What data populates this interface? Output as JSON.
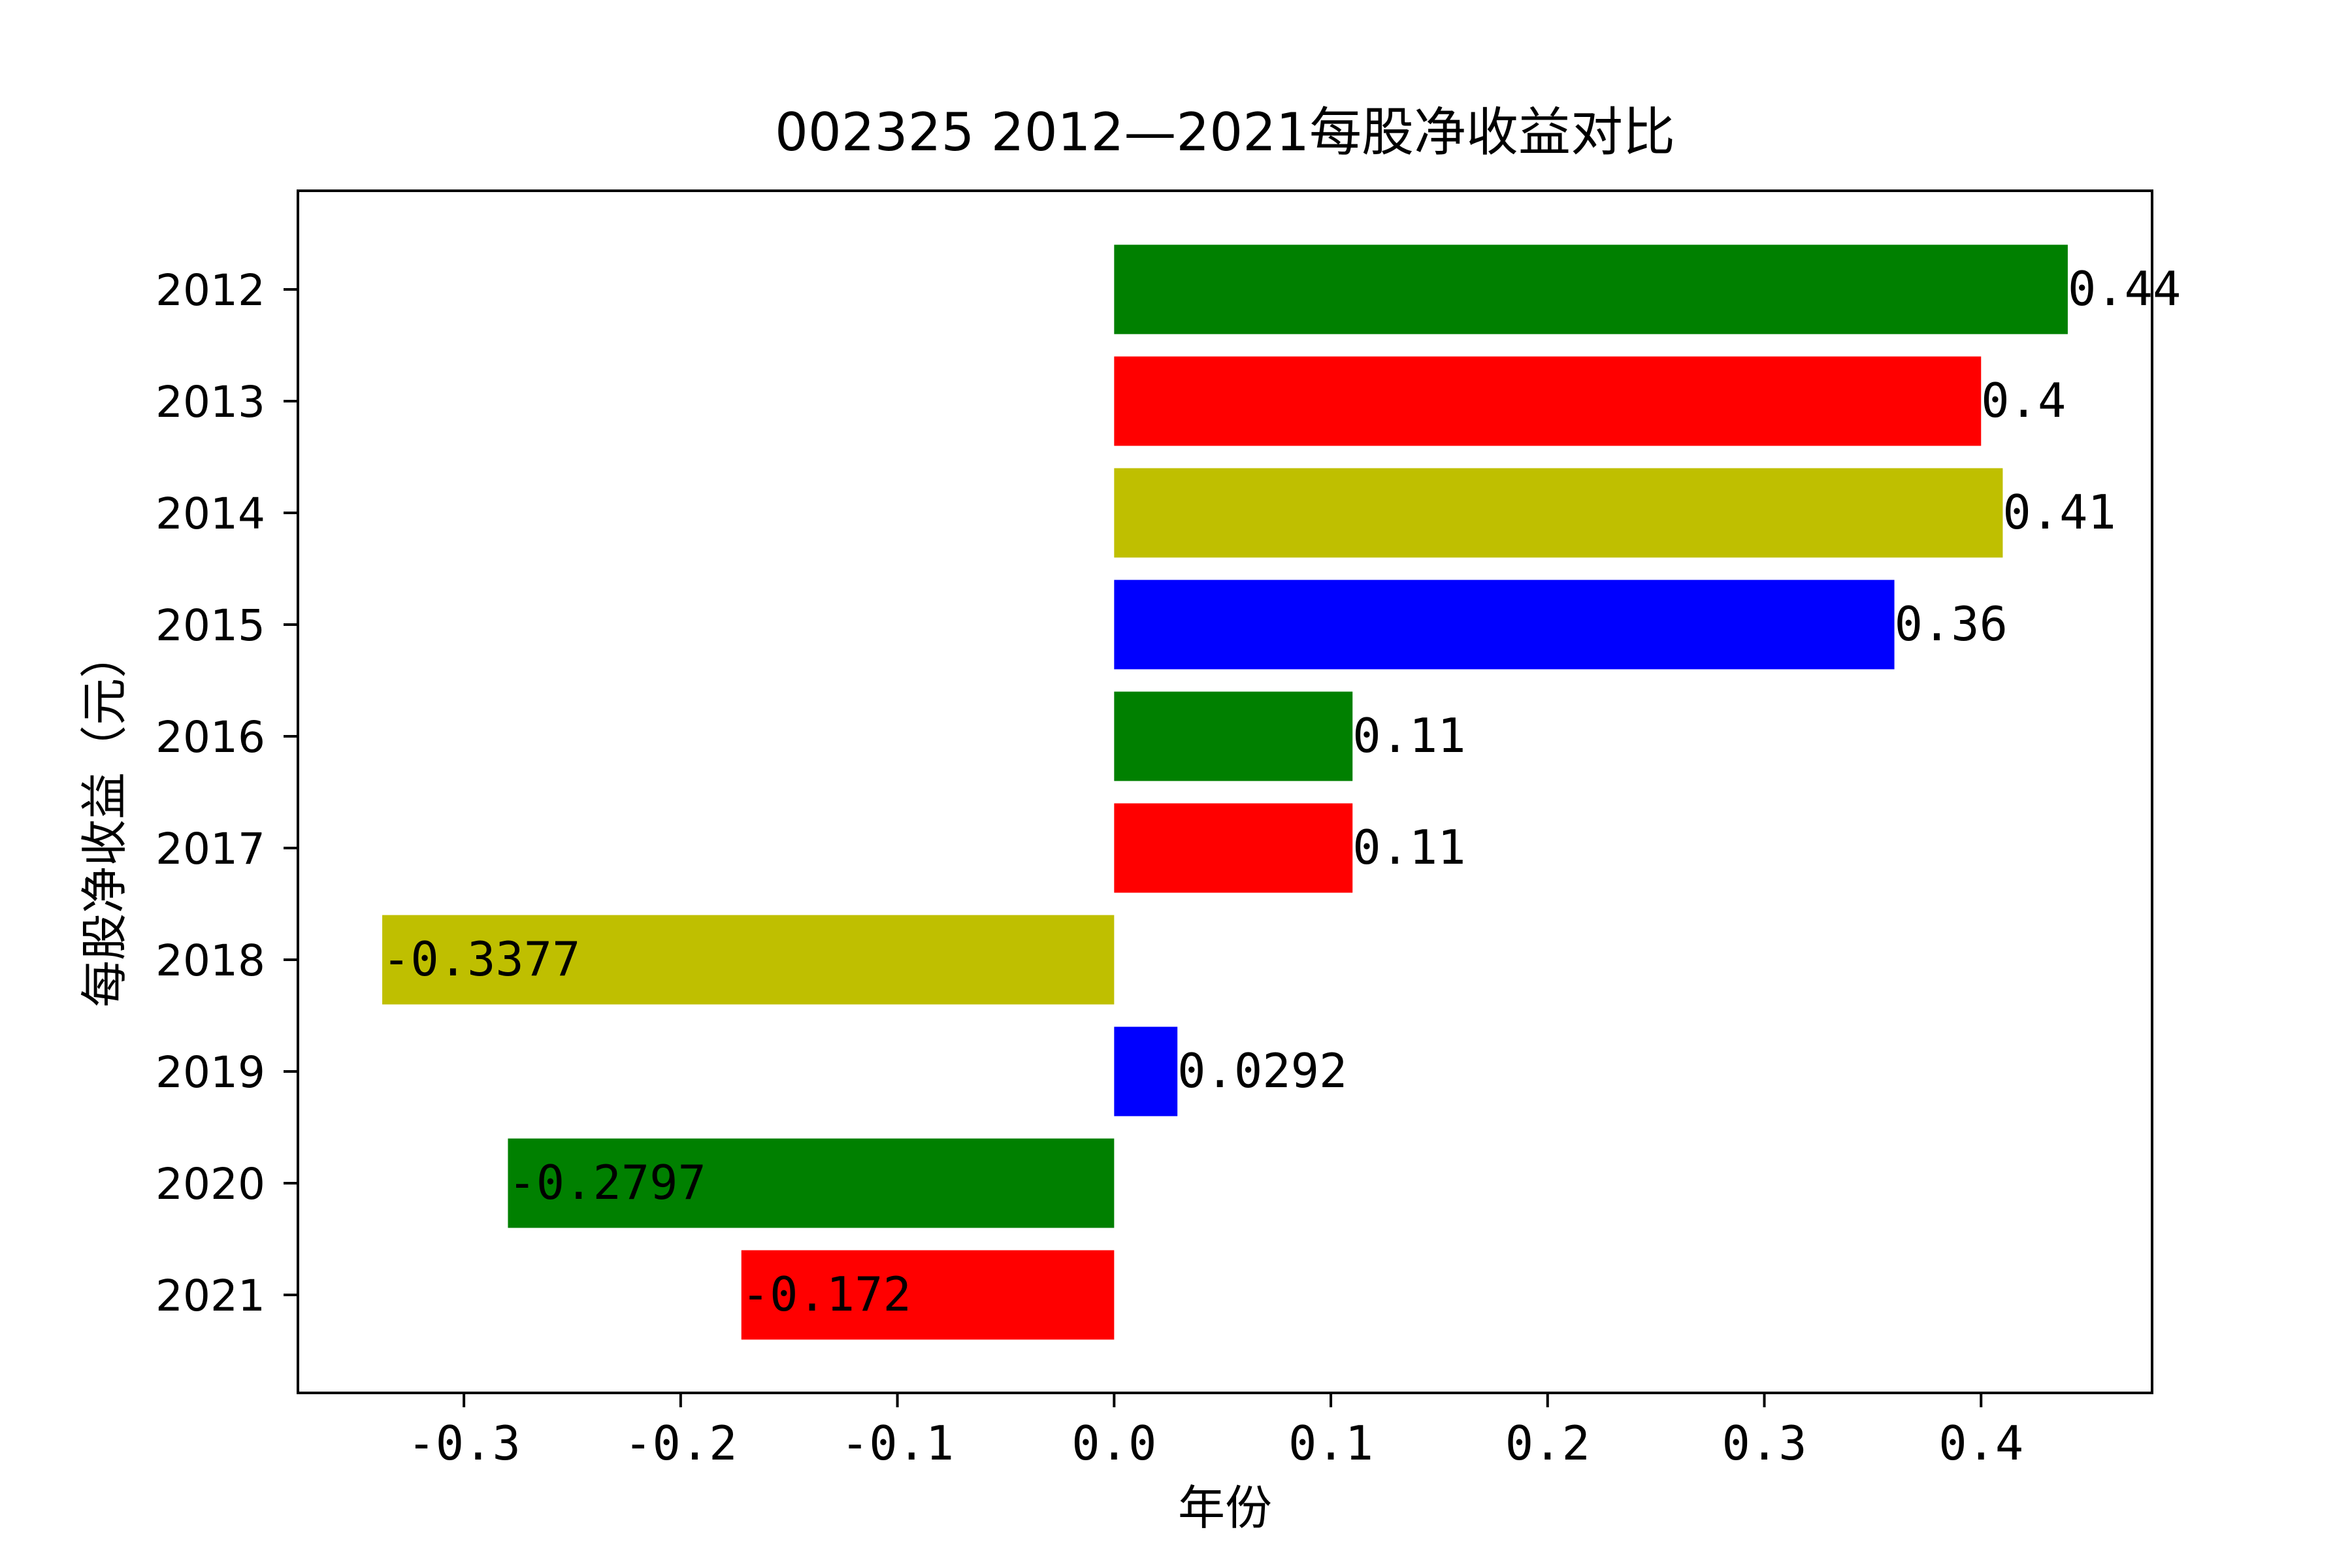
{
  "chart_data": {
    "type": "bar",
    "orientation": "horizontal",
    "title": "002325 2012—2021每股净收益对比",
    "xlabel": "年份",
    "ylabel": "每股净收益（元）",
    "categories": [
      "2012",
      "2013",
      "2014",
      "2015",
      "2016",
      "2017",
      "2018",
      "2019",
      "2020",
      "2021"
    ],
    "values": [
      0.44,
      0.4,
      0.41,
      0.36,
      0.11,
      0.11,
      -0.3377,
      0.0292,
      -0.2797,
      -0.172
    ],
    "value_labels": [
      "0.44",
      "0.4",
      "0.41",
      "0.36",
      "0.11",
      "0.11",
      "-0.3377",
      "0.0292",
      "-0.2797",
      "-0.172"
    ],
    "colors": [
      "#008000",
      "#ff0000",
      "#bfbf00",
      "#0000ff",
      "#008000",
      "#ff0000",
      "#bfbf00",
      "#0000ff",
      "#008000",
      "#ff0000"
    ],
    "xticks": [
      -0.3,
      -0.2,
      -0.1,
      0.0,
      0.1,
      0.2,
      0.3,
      0.4
    ],
    "xtick_labels": [
      "-0.3",
      "-0.2",
      "-0.1",
      "0.0",
      "0.1",
      "0.2",
      "0.3",
      "0.4"
    ],
    "xlim": [
      -0.3766,
      0.4789
    ],
    "grid": false,
    "legend": "none"
  }
}
